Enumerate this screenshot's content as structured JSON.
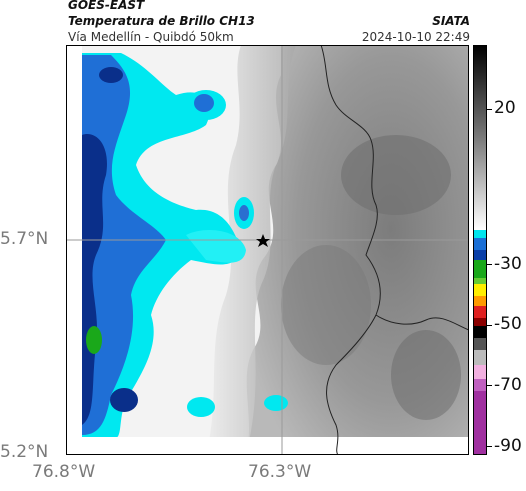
{
  "header": {
    "satellite": "GOES-EAST",
    "product": "Temperatura de Brillo CH13",
    "route": "Vía Medellín - Quibdó 50km",
    "org": "SIATA",
    "datetime": "2024-10-10 22:49"
  },
  "axes": {
    "lat_ticks": [
      "5.7°N",
      "5.2°N"
    ],
    "lon_ticks": [
      "76.8°W",
      "76.3°W"
    ]
  },
  "colorbar": {
    "labels": [
      "20",
      "-30",
      "-50",
      "-70",
      "-90"
    ],
    "colors": {
      "black": "#000000",
      "gray": "#808080",
      "white": "#ffffff",
      "cyan": "#00e5ee",
      "blue": "#0a3fa8",
      "green": "#1aa81a",
      "yellow": "#ffee00",
      "red": "#e02020",
      "magenta": "#a030a0"
    }
  },
  "map": {
    "marker": "star-icon",
    "colors": {
      "cloud_cyan": "#00e8f0",
      "cloud_blue": "#1f6fd6",
      "cloud_navy": "#0a2f8a",
      "land_gray": "#8c8c8c",
      "boundary": "#222222",
      "grid": "#9a9a9a"
    }
  }
}
